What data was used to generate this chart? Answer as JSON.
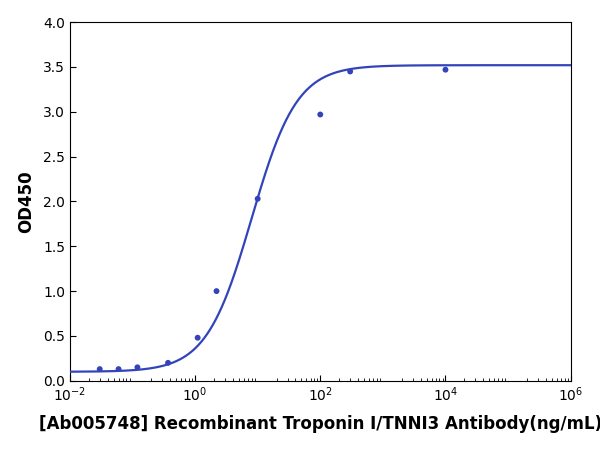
{
  "x_points": [
    0.03,
    0.06,
    0.12,
    0.37,
    1.1,
    2.2,
    10.0,
    100.0,
    300.0,
    10000.0
  ],
  "y_points": [
    0.13,
    0.13,
    0.15,
    0.2,
    0.48,
    1.0,
    2.03,
    2.97,
    3.45,
    3.47
  ],
  "curve_color": "#3344bb",
  "dot_color": "#3344bb",
  "ylabel": "OD450",
  "xlabel": "[Ab005748] Recombinant Troponin I/TNNI3 Antibody(ng/mL)",
  "ylim": [
    0,
    4.0
  ],
  "yticks": [
    0.0,
    0.5,
    1.0,
    1.5,
    2.0,
    2.5,
    3.0,
    3.5,
    4.0
  ],
  "background_color": "#ffffff",
  "curve_linewidth": 1.6,
  "dot_size": 18,
  "xlabel_fontsize": 12,
  "ylabel_fontsize": 12,
  "tick_fontsize": 10
}
